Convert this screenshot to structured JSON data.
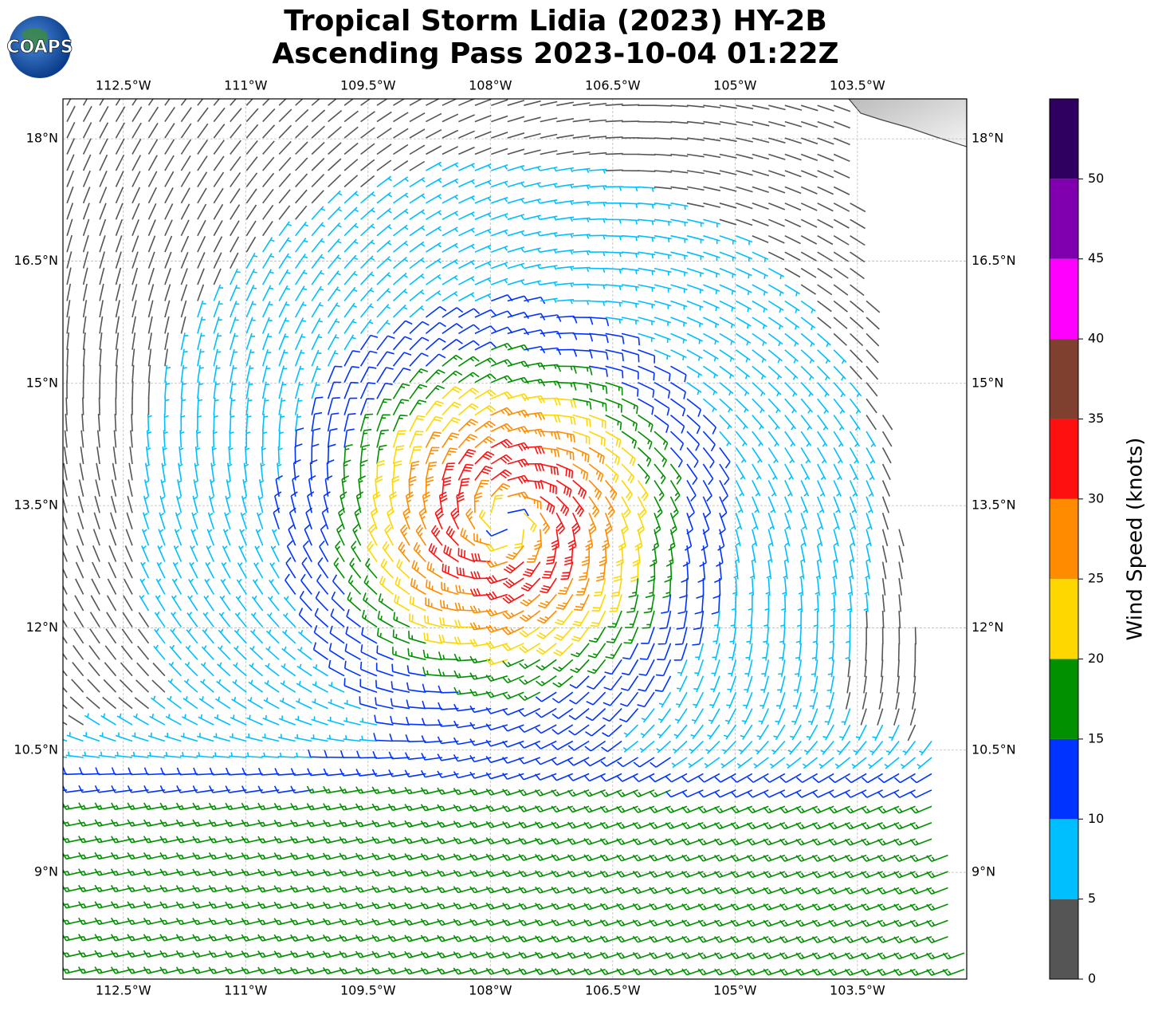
{
  "logo": "COAPS",
  "chart_data": {
    "type": "wind-barb-map",
    "title": [
      "Tropical Storm Lidia (2023) HY-2B",
      "Ascending Pass 2023-10-04 01:22Z"
    ],
    "xlim": [
      -113.24,
      -102.16
    ],
    "ylim": [
      7.69,
      18.49
    ],
    "xticks": [
      {
        "value": -112.5,
        "label": "112.5°W"
      },
      {
        "value": -111,
        "label": "111°W"
      },
      {
        "value": -109.5,
        "label": "109.5°W"
      },
      {
        "value": -108,
        "label": "108°W"
      },
      {
        "value": -106.5,
        "label": "106.5°W"
      },
      {
        "value": -105,
        "label": "105°W"
      },
      {
        "value": -103.5,
        "label": "103.5°W"
      }
    ],
    "yticks": [
      {
        "value": 18,
        "label": "18°N"
      },
      {
        "value": 16.5,
        "label": "16.5°N"
      },
      {
        "value": 15,
        "label": "15°N"
      },
      {
        "value": 13.5,
        "label": "13.5°N"
      },
      {
        "value": 12,
        "label": "12°N"
      },
      {
        "value": 10.5,
        "label": "10.5°N"
      },
      {
        "value": 9,
        "label": "9°N"
      }
    ],
    "grid": true,
    "colorbar": {
      "label": "Wind Speed (knots)",
      "lim": [
        0,
        55
      ],
      "ticks": [
        0,
        5,
        10,
        15,
        20,
        25,
        30,
        35,
        40,
        45,
        50
      ],
      "colors": [
        "#555555",
        "#00bfff",
        "#0033ff",
        "#009000",
        "#ffd700",
        "#ff8c00",
        "#ff1010",
        "#804030",
        "#ff00ff",
        "#8000b0",
        "#300060"
      ]
    }
  }
}
